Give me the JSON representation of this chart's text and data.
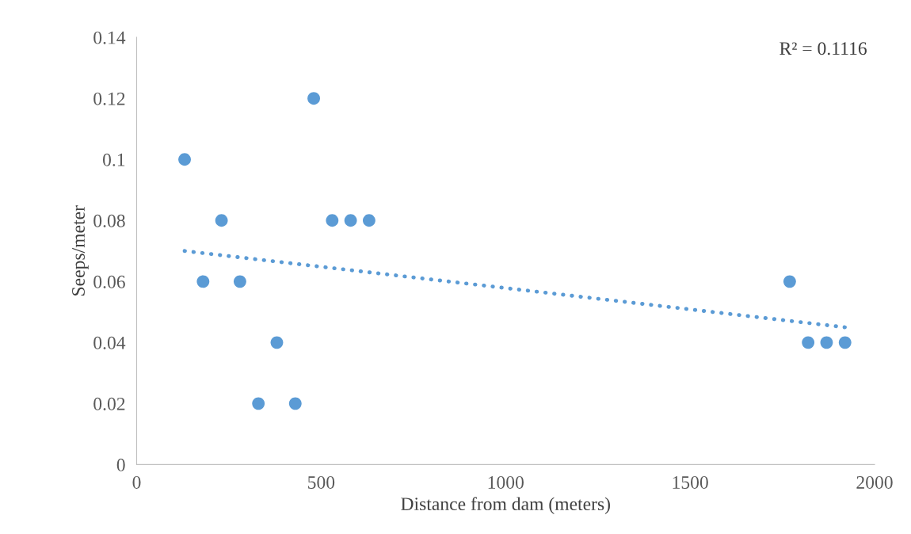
{
  "chart_data": {
    "type": "scatter",
    "xlabel": "Distance from dam (meters)",
    "ylabel": "Seeps/meter",
    "annotations": [
      "R² = 0.1116"
    ],
    "series": [
      {
        "color": "#5b9bd5",
        "marker": "circle",
        "x": [
          130,
          180,
          230,
          280,
          330,
          380,
          430,
          480,
          530,
          580,
          630,
          1770,
          1820,
          1870,
          1920
        ],
        "values": [
          0.1,
          0.06,
          0.08,
          0.06,
          0.02,
          0.04,
          0.02,
          0.12,
          0.08,
          0.08,
          0.08,
          0.06,
          0.04,
          0.04,
          0.04
        ]
      },
      {
        "type": "line",
        "color": "#5b9bd5",
        "line_style": "dotted",
        "marker": "none",
        "x": [
          130,
          1920
        ],
        "values": [
          0.07,
          0.045
        ]
      }
    ],
    "xlim": [
      0,
      2000
    ],
    "xticks": [
      0,
      500,
      1000,
      1500,
      2000
    ],
    "ylim": [
      0,
      0.14
    ],
    "yticks": [
      {
        "value": 0,
        "label": "0"
      },
      {
        "value": 0.02,
        "label": "0.02"
      },
      {
        "value": 0.04,
        "label": "0.04"
      },
      {
        "value": 0.06,
        "label": "0.06"
      },
      {
        "value": 0.08,
        "label": "0.08"
      },
      {
        "value": 0.1,
        "label": "0.1"
      },
      {
        "value": 0.12,
        "label": "0.12"
      },
      {
        "value": 0.14,
        "label": "0.14"
      }
    ],
    "grid": false
  }
}
